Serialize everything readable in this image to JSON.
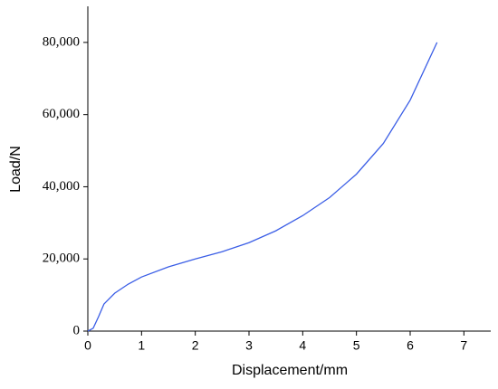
{
  "chart_data": {
    "type": "line",
    "x_label": "Displacement/mm",
    "y_label": "Load/N",
    "x": [
      0,
      0.1,
      0.2,
      0.3,
      0.5,
      0.75,
      1,
      1.5,
      2,
      2.5,
      3,
      3.5,
      4,
      4.5,
      5,
      5.5,
      6,
      6.5
    ],
    "series": [
      {
        "color": "#3b5ee6",
        "values": [
          0,
          800,
          4000,
          7500,
          10500,
          13000,
          15000,
          17800,
          20000,
          22000,
          24500,
          27800,
          32000,
          37000,
          43500,
          52000,
          64000,
          80000
        ]
      }
    ],
    "xlim": [
      0,
      7.5
    ],
    "ylim": [
      0,
      90000
    ],
    "xticks": [
      0,
      1,
      2,
      3,
      4,
      5,
      6,
      7
    ],
    "yticks": [
      0,
      {
        "value": 20000,
        "label": "20,000"
      },
      {
        "value": 40000,
        "label": "40,000"
      },
      {
        "value": 60000,
        "label": "60,000"
      },
      {
        "value": 80000,
        "label": "80,000"
      }
    ],
    "grid": false
  }
}
